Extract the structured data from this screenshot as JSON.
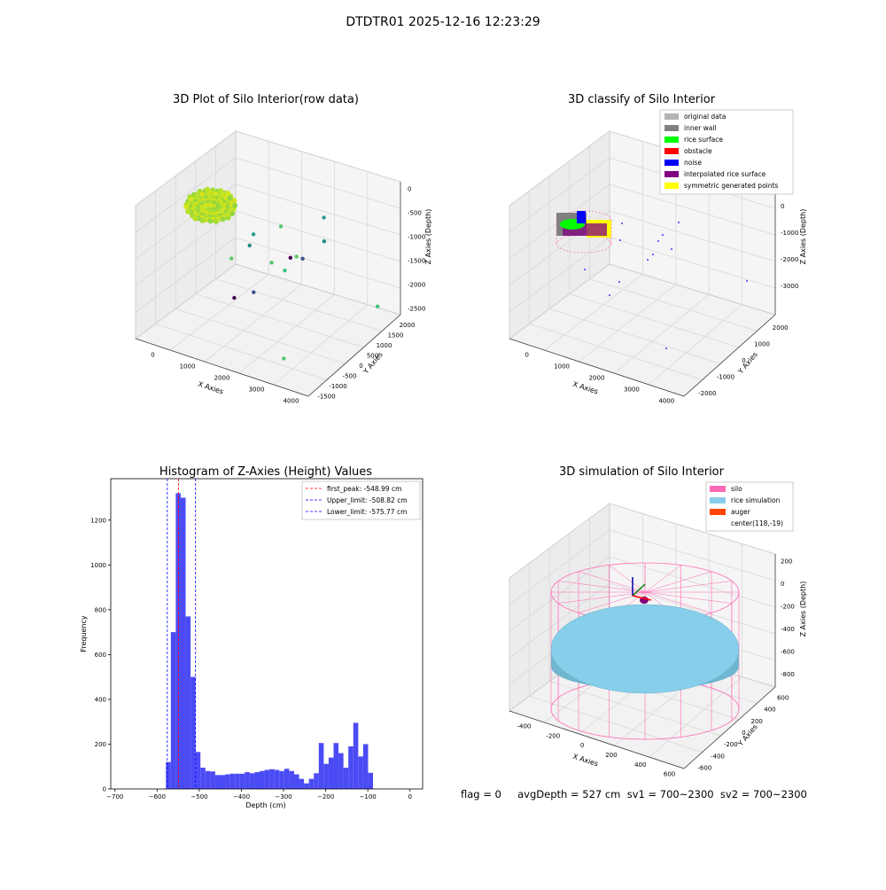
{
  "figure": {
    "suptitle": "DTDTR01 2025-12-16 12:23:29",
    "status_line": "flag = 0     avgDepth = 527 cm  sv1 = 700~2300  sv2 = 700~2300"
  },
  "colors": {
    "first_peak": "#ff0000",
    "limits": "#0000ff",
    "hist_bar": "#4b4bf5",
    "silo": "#ff69b4",
    "rice_sim": "#87ceeb",
    "auger": "#ff4500",
    "original": "#b3b3b3",
    "inner_wall": "#808080",
    "rice_surface": "#00ff00",
    "obstacle": "#ff0000",
    "noise": "#0000ff",
    "interp": "#800080",
    "symmetric": "#ffff00",
    "pane": "#f2f2f2",
    "grid": "#d8d8d8"
  },
  "chart_data": [
    {
      "type": "scatter",
      "subtype": "3d-scatter",
      "title": "3D Plot of Silo Interior(row data)",
      "xlabel": "X Axies",
      "ylabel": "Y Axies",
      "zlabel": "Z Axies (Depth)",
      "x_ticks": [
        "0",
        "1000",
        "2000",
        "3000",
        "4000"
      ],
      "y_ticks": [
        "-1500",
        "-1000",
        "-500",
        "0",
        "500",
        "1000",
        "1500",
        "2000"
      ],
      "z_ticks": [
        "0",
        "-500",
        "-1000",
        "-1500",
        "-2000",
        "-2500"
      ],
      "xlim": [
        -600,
        4200
      ],
      "ylim": [
        -1800,
        2200
      ],
      "zlim": [
        -2800,
        200
      ],
      "points": [
        {
          "x": 118,
          "y": -19,
          "z": -550
        },
        {
          "x": 1350,
          "y": 1200,
          "z": -1000
        },
        {
          "x": 2200,
          "y": 1700,
          "z": -780
        },
        {
          "x": 2450,
          "y": 1350,
          "z": -1100
        },
        {
          "x": 2200,
          "y": 600,
          "z": -1200
        },
        {
          "x": 2200,
          "y": 850,
          "z": -1350
        },
        {
          "x": 2000,
          "y": 650,
          "z": -1300
        },
        {
          "x": 2050,
          "y": 350,
          "z": -1450
        },
        {
          "x": 1650,
          "y": 400,
          "z": -1400
        },
        {
          "x": 800,
          "y": 900,
          "z": -1200
        },
        {
          "x": 900,
          "y": 600,
          "z": -1300
        },
        {
          "x": 600,
          "y": 300,
          "z": -1550
        },
        {
          "x": 1500,
          "y": -100,
          "z": -1900
        },
        {
          "x": 1100,
          "y": -300,
          "z": -2050
        },
        {
          "x": 3900,
          "y": 1400,
          "z": -2200
        },
        {
          "x": 3100,
          "y": -1200,
          "z": -2500
        }
      ]
    },
    {
      "type": "scatter",
      "subtype": "3d-classification",
      "title": "3D classify of Silo Interior",
      "xlabel": "X Axies",
      "ylabel": "Y Axies",
      "zlabel": "Z Axies (Depth)",
      "x_ticks": [
        "0",
        "1000",
        "2000",
        "3000",
        "4000"
      ],
      "y_ticks": [
        "-2000",
        "-1000",
        "0",
        "1000",
        "2000"
      ],
      "z_ticks": [
        "0",
        "-1000",
        "-2000",
        "-3000"
      ],
      "legend": [
        "original data",
        "inner wall",
        "rice surface",
        "obstacle",
        "noise",
        "interpolated rice surface",
        "symmetric generated points"
      ],
      "legend_location": "upper right"
    },
    {
      "type": "bar",
      "subtype": "histogram",
      "title": "Histogram of Z-Axies (Height) Values",
      "xlabel": "Depth (cm)",
      "ylabel": "Frequency",
      "xlim": [
        -710,
        30
      ],
      "ylim": [
        0,
        1385
      ],
      "x_ticks": [
        -700,
        -600,
        -500,
        -400,
        -300,
        -200,
        -100,
        0
      ],
      "y_ticks": [
        0,
        200,
        400,
        600,
        800,
        1000,
        1200
      ],
      "bin_start": -579.1,
      "bin_width": 11.7,
      "values": [
        120,
        700,
        1320,
        1300,
        770,
        500,
        165,
        95,
        80,
        78,
        62,
        62,
        65,
        68,
        68,
        68,
        75,
        70,
        75,
        80,
        85,
        88,
        85,
        80,
        90,
        80,
        65,
        45,
        25,
        45,
        70,
        205,
        112,
        140,
        205,
        160,
        95,
        190,
        295,
        145,
        200,
        72
      ],
      "vlines": [
        {
          "label": "first_peak: -548.99 cm",
          "x": -548.99,
          "style": "red"
        },
        {
          "label": "Upper_limit: -508.82 cm",
          "x": -508.82,
          "style": "blue"
        },
        {
          "label": "Lower_limit: -575.77 cm",
          "x": -575.77,
          "style": "blue"
        }
      ],
      "legend_location": "upper right"
    },
    {
      "type": "scatter",
      "subtype": "3d-surface-simulation",
      "title": "3D simulation of Silo Interior",
      "xlabel": "X Axies",
      "ylabel": "Y Axies",
      "zlabel": "Z Axies (Depth)",
      "x_ticks": [
        "-400",
        "-200",
        "0",
        "200",
        "400",
        "600"
      ],
      "y_ticks": [
        "-600",
        "-400",
        "-200",
        "0",
        "200",
        "400",
        "600"
      ],
      "z_ticks": [
        "200",
        "0",
        "-200",
        "-400",
        "-600",
        "-800"
      ],
      "legend": [
        "silo",
        "rice simulation",
        "auger",
        "center(118,-19)"
      ],
      "legend_location": "upper right"
    }
  ]
}
